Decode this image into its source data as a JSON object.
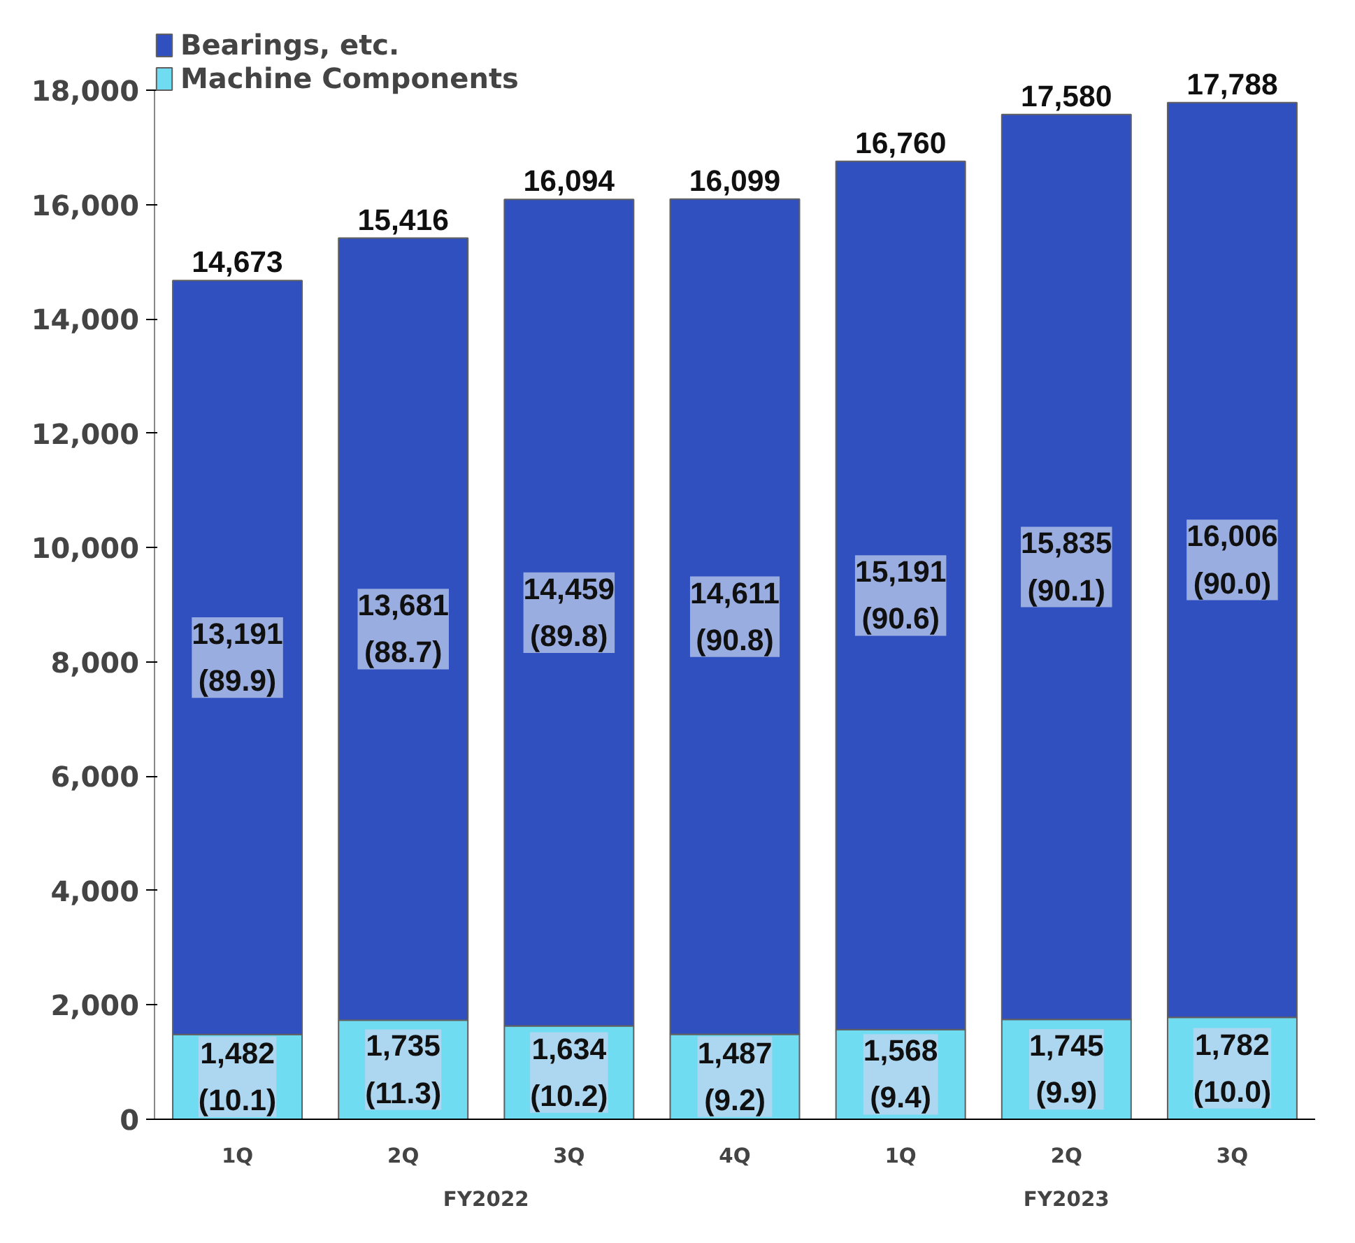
{
  "chart_data": {
    "type": "bar",
    "stacked": true,
    "categories": [
      "1Q",
      "2Q",
      "3Q",
      "4Q",
      "1Q",
      "2Q",
      "3Q"
    ],
    "series": [
      {
        "name": "Machine Components",
        "color": "#6fdcf2",
        "values": [
          1482,
          1735,
          1634,
          1487,
          1568,
          1745,
          1782
        ],
        "value_labels": [
          "1,482\n(10.1)",
          "1,735\n(11.3)",
          "1,634\n(10.2)",
          "1,487\n(9.2)",
          "1,568\n(9.4)",
          "1,745\n(9.9)",
          "1,782\n(10.0)"
        ]
      },
      {
        "name": "Bearings, etc.",
        "color": "#3050c0",
        "values": [
          13191,
          13681,
          14459,
          14611,
          15191,
          15835,
          16006
        ],
        "value_labels": [
          "13,191\n(89.9)",
          "13,681\n(88.7)",
          "14,459\n(89.8)",
          "14,611\n(90.8)",
          "15,191\n(90.6)",
          "15,835\n(90.1)",
          "16,006\n(90.0)"
        ]
      }
    ],
    "totals": [
      "14,673",
      "15,416",
      "16,094",
      "16,099",
      "16,760",
      "17,580",
      "17,788"
    ],
    "annotations": [
      "FY2022",
      "FY2023"
    ],
    "ylim": [
      0,
      18000
    ],
    "yticks": [
      0,
      {
        "value": 2000,
        "label": "2,000"
      },
      {
        "value": 4000,
        "label": "4,000"
      },
      {
        "value": 6000,
        "label": "6,000"
      },
      {
        "value": 8000,
        "label": "8,000"
      },
      {
        "value": 10000,
        "label": "10,000"
      },
      {
        "value": 12000,
        "label": "12,000"
      },
      {
        "value": 14000,
        "label": "14,000"
      },
      {
        "value": 16000,
        "label": "16,000"
      },
      {
        "value": 18000,
        "label": "18,000"
      }
    ],
    "grid": false,
    "legend": "top left"
  }
}
